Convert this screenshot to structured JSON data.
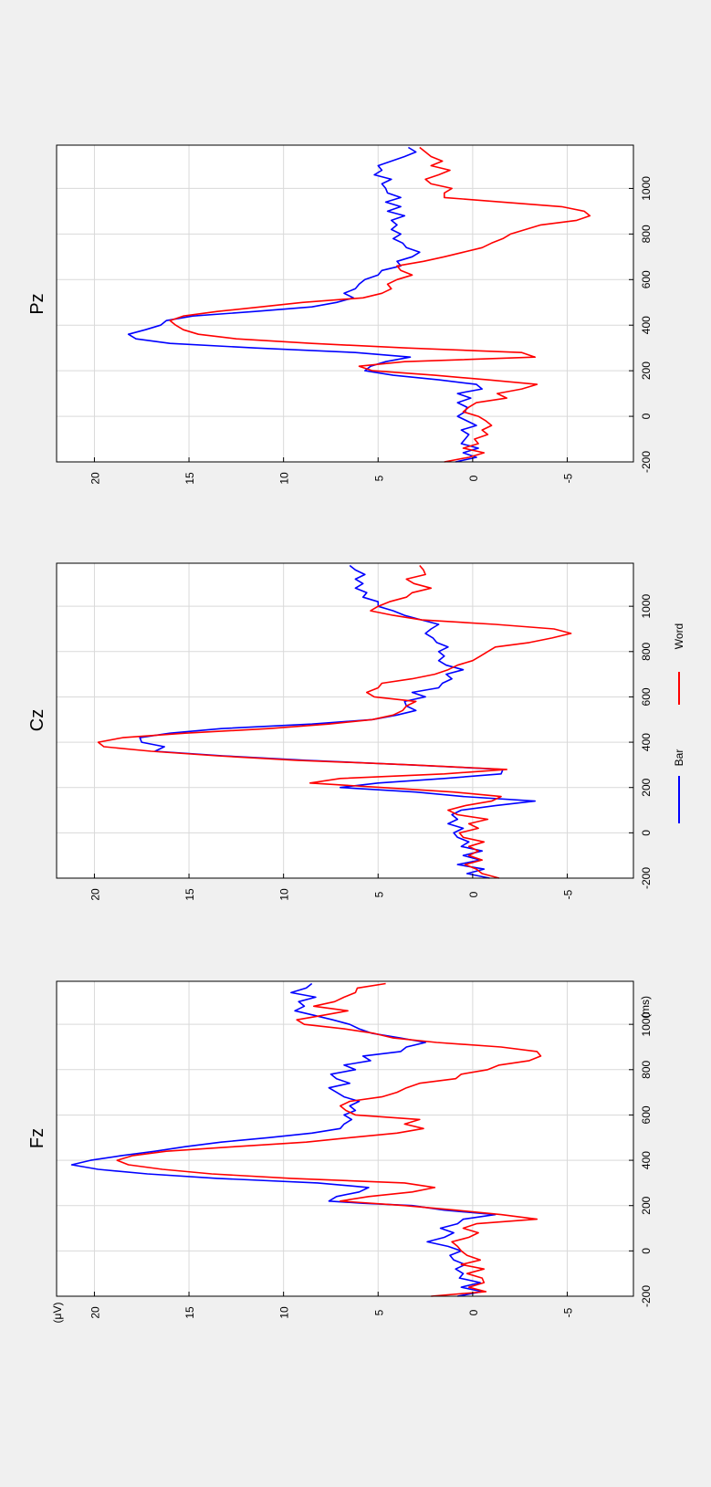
{
  "figure": {
    "background": "#f0f0f0",
    "panel_background": "#ffffff",
    "grid_color": "#d9d9d9",
    "axis_color": "#000000"
  },
  "legend": {
    "items": [
      {
        "label": "Bar",
        "color": "#0000ff"
      },
      {
        "label": "Word",
        "color": "#ff0000"
      }
    ]
  },
  "chart_data": [
    {
      "type": "line",
      "title": "Fz",
      "ylabel": "(μV)",
      "xlabel_unit": "(ms)",
      "x_ticks": [
        -200,
        0,
        200,
        400,
        600,
        800,
        1000
      ],
      "y_ticks": [
        20,
        15,
        10,
        5,
        0,
        -5
      ],
      "xlim": [
        -200,
        1190
      ],
      "ylim": [
        -8.5,
        22
      ],
      "grid": true,
      "series": [
        {
          "name": "Bar",
          "color": "#0000ff",
          "x": [
            -200,
            -180,
            -160,
            -140,
            -120,
            -100,
            -80,
            -60,
            -40,
            -20,
            0,
            20,
            40,
            60,
            80,
            100,
            120,
            140,
            160,
            180,
            200,
            210,
            220,
            240,
            260,
            280,
            300,
            320,
            340,
            360,
            380,
            400,
            420,
            440,
            460,
            480,
            500,
            520,
            540,
            560,
            580,
            600,
            620,
            640,
            660,
            680,
            700,
            720,
            740,
            760,
            780,
            800,
            820,
            840,
            860,
            880,
            900,
            920,
            940,
            960,
            980,
            1000,
            1020,
            1040,
            1060,
            1080,
            1100,
            1120,
            1140,
            1160,
            1180
          ],
          "y": [
            0.8,
            -0.5,
            0.6,
            -0.4,
            0.7,
            0.5,
            0.9,
            0.4,
            1.0,
            1.2,
            0.6,
            1.3,
            2.4,
            1.5,
            1.0,
            1.7,
            0.8,
            0.5,
            -1.2,
            1.5,
            3.2,
            5.8,
            7.6,
            7.2,
            6.0,
            5.5,
            8.2,
            13.5,
            17.2,
            19.8,
            21.2,
            20.2,
            18.6,
            16.8,
            15.2,
            13.3,
            10.8,
            8.5,
            7.0,
            6.8,
            6.4,
            6.8,
            6.2,
            6.5,
            6.0,
            6.8,
            7.2,
            7.6,
            6.5,
            7.2,
            7.5,
            6.2,
            6.8,
            5.4,
            5.8,
            3.8,
            3.5,
            2.5,
            3.8,
            5.3,
            6.0,
            6.5,
            7.4,
            8.4,
            9.4,
            8.9,
            9.2,
            8.3,
            9.6,
            8.8,
            8.5
          ]
        },
        {
          "name": "Word",
          "color": "#ff0000",
          "x": [
            -200,
            -180,
            -160,
            -140,
            -120,
            -100,
            -80,
            -60,
            -40,
            -20,
            0,
            20,
            40,
            60,
            80,
            100,
            120,
            140,
            160,
            180,
            200,
            220,
            240,
            260,
            280,
            300,
            320,
            340,
            360,
            380,
            400,
            420,
            440,
            460,
            480,
            500,
            520,
            540,
            560,
            580,
            600,
            620,
            640,
            660,
            680,
            700,
            720,
            740,
            760,
            780,
            800,
            820,
            840,
            860,
            880,
            900,
            920,
            940,
            960,
            980,
            1000,
            1020,
            1040,
            1060,
            1080,
            1100,
            1120,
            1140,
            1160,
            1180
          ],
          "y": [
            2.2,
            -0.7,
            0.2,
            -0.6,
            -0.5,
            0.3,
            -0.6,
            0.6,
            -0.4,
            0.3,
            0.6,
            0.8,
            1.1,
            0.2,
            -0.3,
            0.5,
            -0.2,
            -3.4,
            -1.5,
            0.9,
            3.6,
            7.0,
            5.5,
            3.2,
            2.0,
            3.6,
            9.6,
            13.8,
            16.4,
            18.2,
            18.8,
            18.0,
            16.2,
            12.6,
            8.8,
            6.5,
            4.0,
            2.6,
            3.6,
            2.8,
            6.2,
            6.7,
            7.0,
            6.5,
            4.8,
            4.0,
            3.5,
            2.8,
            0.9,
            0.6,
            -0.8,
            -1.4,
            -3.0,
            -3.6,
            -3.4,
            -1.5,
            1.9,
            4.2,
            5.2,
            6.8,
            8.9,
            9.3,
            7.9,
            6.6,
            8.4,
            7.3,
            6.8,
            6.2,
            6.1,
            4.6
          ]
        }
      ]
    },
    {
      "type": "line",
      "title": "Cz",
      "x_ticks": [
        -200,
        0,
        200,
        400,
        600,
        800,
        1000
      ],
      "y_ticks": [
        20,
        15,
        10,
        5,
        0,
        -5
      ],
      "xlim": [
        -200,
        1190
      ],
      "ylim": [
        -8.5,
        22
      ],
      "grid": true,
      "series": [
        {
          "name": "Bar",
          "color": "#0000ff",
          "x": [
            -200,
            -180,
            -160,
            -140,
            -120,
            -100,
            -80,
            -60,
            -40,
            -20,
            0,
            20,
            40,
            60,
            80,
            100,
            120,
            140,
            160,
            180,
            200,
            220,
            240,
            260,
            280,
            300,
            320,
            340,
            360,
            380,
            400,
            420,
            440,
            460,
            480,
            500,
            520,
            540,
            560,
            580,
            600,
            620,
            640,
            660,
            680,
            700,
            720,
            740,
            760,
            780,
            800,
            820,
            840,
            860,
            880,
            900,
            920,
            940,
            960,
            980,
            1000,
            1020,
            1040,
            1060,
            1080,
            1100,
            1120,
            1140,
            1160,
            1180
          ],
          "y": [
            -0.9,
            0.3,
            -0.6,
            0.8,
            -0.4,
            0.5,
            -0.5,
            0.6,
            0.2,
            0.8,
            1.0,
            0.5,
            1.3,
            0.8,
            1.1,
            0.6,
            -1.2,
            -3.3,
            0.5,
            3.0,
            7.0,
            5.0,
            1.5,
            -1.5,
            -1.6,
            3.3,
            8.8,
            13.2,
            16.8,
            16.3,
            17.5,
            17.6,
            16.0,
            13.3,
            8.5,
            5.3,
            4.0,
            3.0,
            3.5,
            3.6,
            2.5,
            3.2,
            1.8,
            1.6,
            1.1,
            1.4,
            0.5,
            1.4,
            1.8,
            1.5,
            1.8,
            1.3,
            1.9,
            2.1,
            2.5,
            2.2,
            1.8,
            2.7,
            3.6,
            4.2,
            5.0,
            5.0,
            5.8,
            5.6,
            6.2,
            5.8,
            6.2,
            5.7,
            6.2,
            6.5
          ]
        },
        {
          "name": "Word",
          "color": "#ff0000",
          "x": [
            -200,
            -180,
            -160,
            -140,
            -120,
            -100,
            -80,
            -60,
            -40,
            -20,
            0,
            20,
            40,
            60,
            80,
            100,
            120,
            140,
            160,
            180,
            200,
            220,
            240,
            260,
            280,
            300,
            320,
            340,
            360,
            380,
            400,
            420,
            440,
            460,
            480,
            500,
            520,
            540,
            560,
            580,
            600,
            620,
            640,
            660,
            680,
            700,
            720,
            740,
            760,
            780,
            800,
            820,
            840,
            860,
            880,
            900,
            920,
            940,
            960,
            980,
            1000,
            1020,
            1040,
            1060,
            1080,
            1100,
            1120,
            1140,
            1160,
            1180
          ],
          "y": [
            -1.4,
            -0.5,
            -0.2,
            0.4,
            -0.5,
            0.2,
            -0.3,
            0.2,
            -0.6,
            0.5,
            0.7,
            -0.3,
            0.2,
            -0.8,
            0.8,
            1.3,
            0.4,
            -1.0,
            -1.5,
            1.0,
            4.8,
            8.6,
            7.0,
            1.5,
            -1.8,
            3.2,
            9.3,
            13.5,
            17.0,
            19.5,
            19.8,
            18.5,
            15.2,
            10.8,
            7.6,
            5.3,
            4.2,
            3.7,
            3.5,
            3.0,
            5.2,
            5.6,
            5.0,
            4.8,
            3.2,
            2.0,
            1.3,
            0.8,
            0.0,
            -0.4,
            -0.8,
            -1.2,
            -3.0,
            -4.2,
            -5.2,
            -4.3,
            -1.2,
            2.7,
            4.2,
            5.4,
            5.0,
            4.4,
            3.5,
            3.2,
            2.2,
            3.1,
            3.5,
            2.5,
            2.6,
            2.8
          ]
        }
      ]
    },
    {
      "type": "line",
      "title": "Pz",
      "x_ticks": [
        -200,
        0,
        200,
        400,
        600,
        800,
        1000
      ],
      "y_ticks": [
        20,
        15,
        10,
        5,
        0,
        -5
      ],
      "xlim": [
        -200,
        1190
      ],
      "ylim": [
        -8.5,
        22
      ],
      "grid": true,
      "series": [
        {
          "name": "Bar",
          "color": "#0000ff",
          "x": [
            -200,
            -180,
            -160,
            -140,
            -120,
            -100,
            -80,
            -60,
            -40,
            -20,
            0,
            20,
            40,
            60,
            80,
            100,
            120,
            140,
            160,
            180,
            200,
            220,
            240,
            260,
            280,
            300,
            320,
            340,
            360,
            380,
            400,
            420,
            440,
            460,
            480,
            500,
            520,
            540,
            560,
            580,
            600,
            620,
            640,
            660,
            680,
            700,
            720,
            740,
            760,
            780,
            800,
            820,
            840,
            860,
            880,
            900,
            920,
            940,
            960,
            980,
            1000,
            1020,
            1040,
            1060,
            1080,
            1100,
            1120,
            1140,
            1160,
            1180
          ],
          "y": [
            0.9,
            -0.2,
            0.5,
            -0.3,
            0.6,
            0.4,
            0.2,
            0.6,
            -0.2,
            0.3,
            0.8,
            0.4,
            0.3,
            0.8,
            0.1,
            0.8,
            -0.5,
            -0.2,
            1.8,
            4.2,
            5.7,
            5.4,
            4.6,
            3.3,
            6.2,
            11.5,
            16.0,
            17.8,
            18.2,
            17.3,
            16.5,
            16.2,
            14.8,
            11.5,
            8.5,
            7.2,
            6.3,
            6.8,
            6.2,
            6.0,
            5.7,
            5.0,
            4.8,
            3.8,
            4.0,
            3.2,
            2.8,
            3.5,
            3.7,
            4.2,
            3.8,
            4.3,
            4.0,
            4.3,
            3.6,
            4.5,
            3.8,
            4.6,
            3.8,
            4.5,
            4.6,
            4.8,
            4.3,
            5.2,
            4.8,
            5.0,
            4.3,
            3.6,
            3.0,
            3.4
          ]
        },
        {
          "name": "Word",
          "color": "#ff0000",
          "x": [
            -200,
            -180,
            -160,
            -140,
            -120,
            -100,
            -80,
            -60,
            -40,
            -20,
            0,
            20,
            40,
            60,
            80,
            100,
            120,
            140,
            160,
            180,
            200,
            220,
            240,
            260,
            280,
            300,
            320,
            340,
            360,
            380,
            400,
            420,
            440,
            460,
            480,
            500,
            520,
            540,
            560,
            580,
            600,
            620,
            640,
            660,
            680,
            700,
            720,
            740,
            760,
            780,
            800,
            820,
            840,
            860,
            880,
            900,
            920,
            940,
            960,
            980,
            1000,
            1020,
            1040,
            1060,
            1080,
            1100,
            1120,
            1140,
            1160,
            1180
          ],
          "y": [
            1.5,
            0.2,
            -0.6,
            0.5,
            -0.3,
            -0.1,
            -0.8,
            -0.5,
            -1.0,
            -0.7,
            -0.3,
            0.5,
            0.2,
            -0.2,
            -1.8,
            -1.3,
            -2.6,
            -3.4,
            -0.8,
            2.0,
            5.3,
            6.0,
            3.6,
            -3.3,
            -2.6,
            3.5,
            8.5,
            12.5,
            14.5,
            15.3,
            15.7,
            16.0,
            15.3,
            13.5,
            11.2,
            9.0,
            5.8,
            4.8,
            4.3,
            4.5,
            4.0,
            3.2,
            3.8,
            4.0,
            2.6,
            1.5,
            0.5,
            -0.5,
            -1.0,
            -1.6,
            -2.0,
            -2.8,
            -3.6,
            -5.5,
            -6.2,
            -5.9,
            -4.7,
            -1.6,
            1.5,
            1.5,
            1.1,
            2.2,
            2.5,
            1.8,
            1.2,
            2.2,
            1.6,
            2.2,
            2.5,
            2.8
          ]
        }
      ]
    }
  ]
}
